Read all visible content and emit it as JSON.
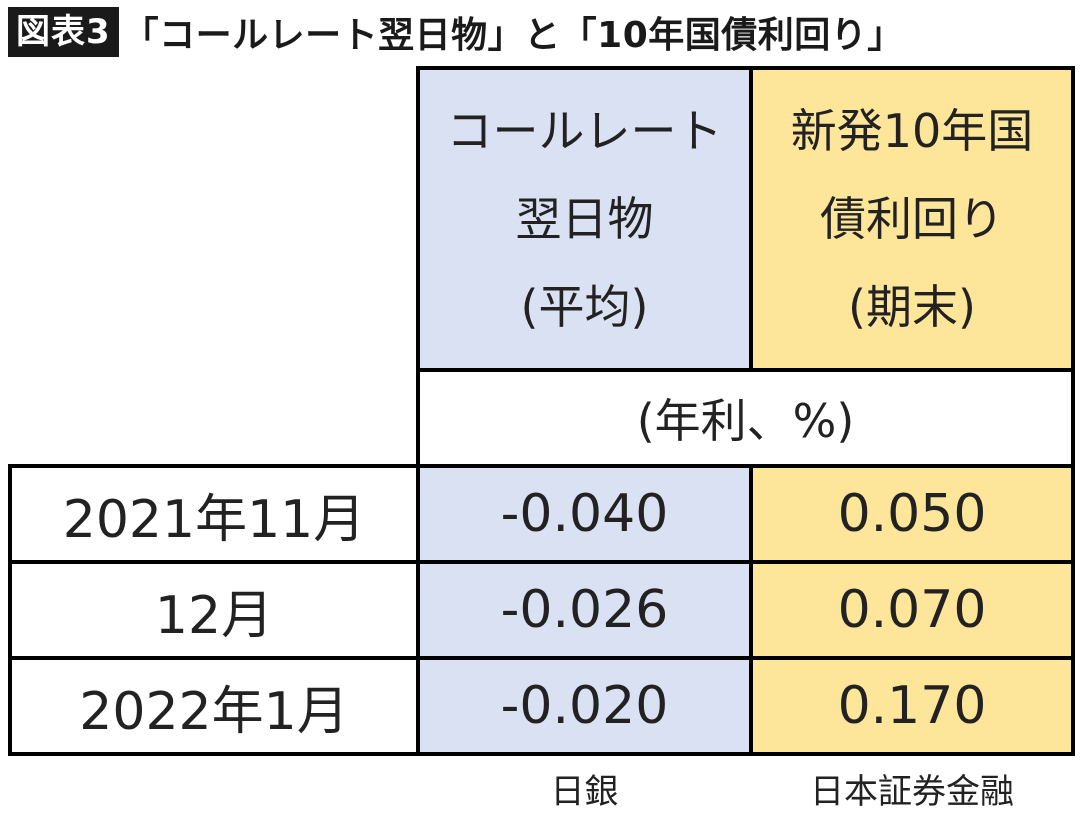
{
  "figure": {
    "badge": "図表3",
    "title": "「コールレート翌日物」と「10年国債利回り」"
  },
  "chart_data": {
    "type": "table",
    "columns": [
      {
        "lines": [
          "コールレート",
          "翌日物",
          "(平均)"
        ],
        "color": "#dae1f2",
        "source": "日銀"
      },
      {
        "lines": [
          "新発10年国",
          "債利回り",
          "(期末)"
        ],
        "color": "#fde59a",
        "source": "日本証券金融"
      }
    ],
    "unit": "(年利、%)",
    "rows": [
      {
        "label": "2021年11月",
        "values": [
          "-0.040",
          "0.050"
        ]
      },
      {
        "label": "12月",
        "values": [
          "-0.026",
          "0.070"
        ]
      },
      {
        "label": "2022年1月",
        "values": [
          "-0.020",
          "0.170"
        ]
      }
    ]
  }
}
